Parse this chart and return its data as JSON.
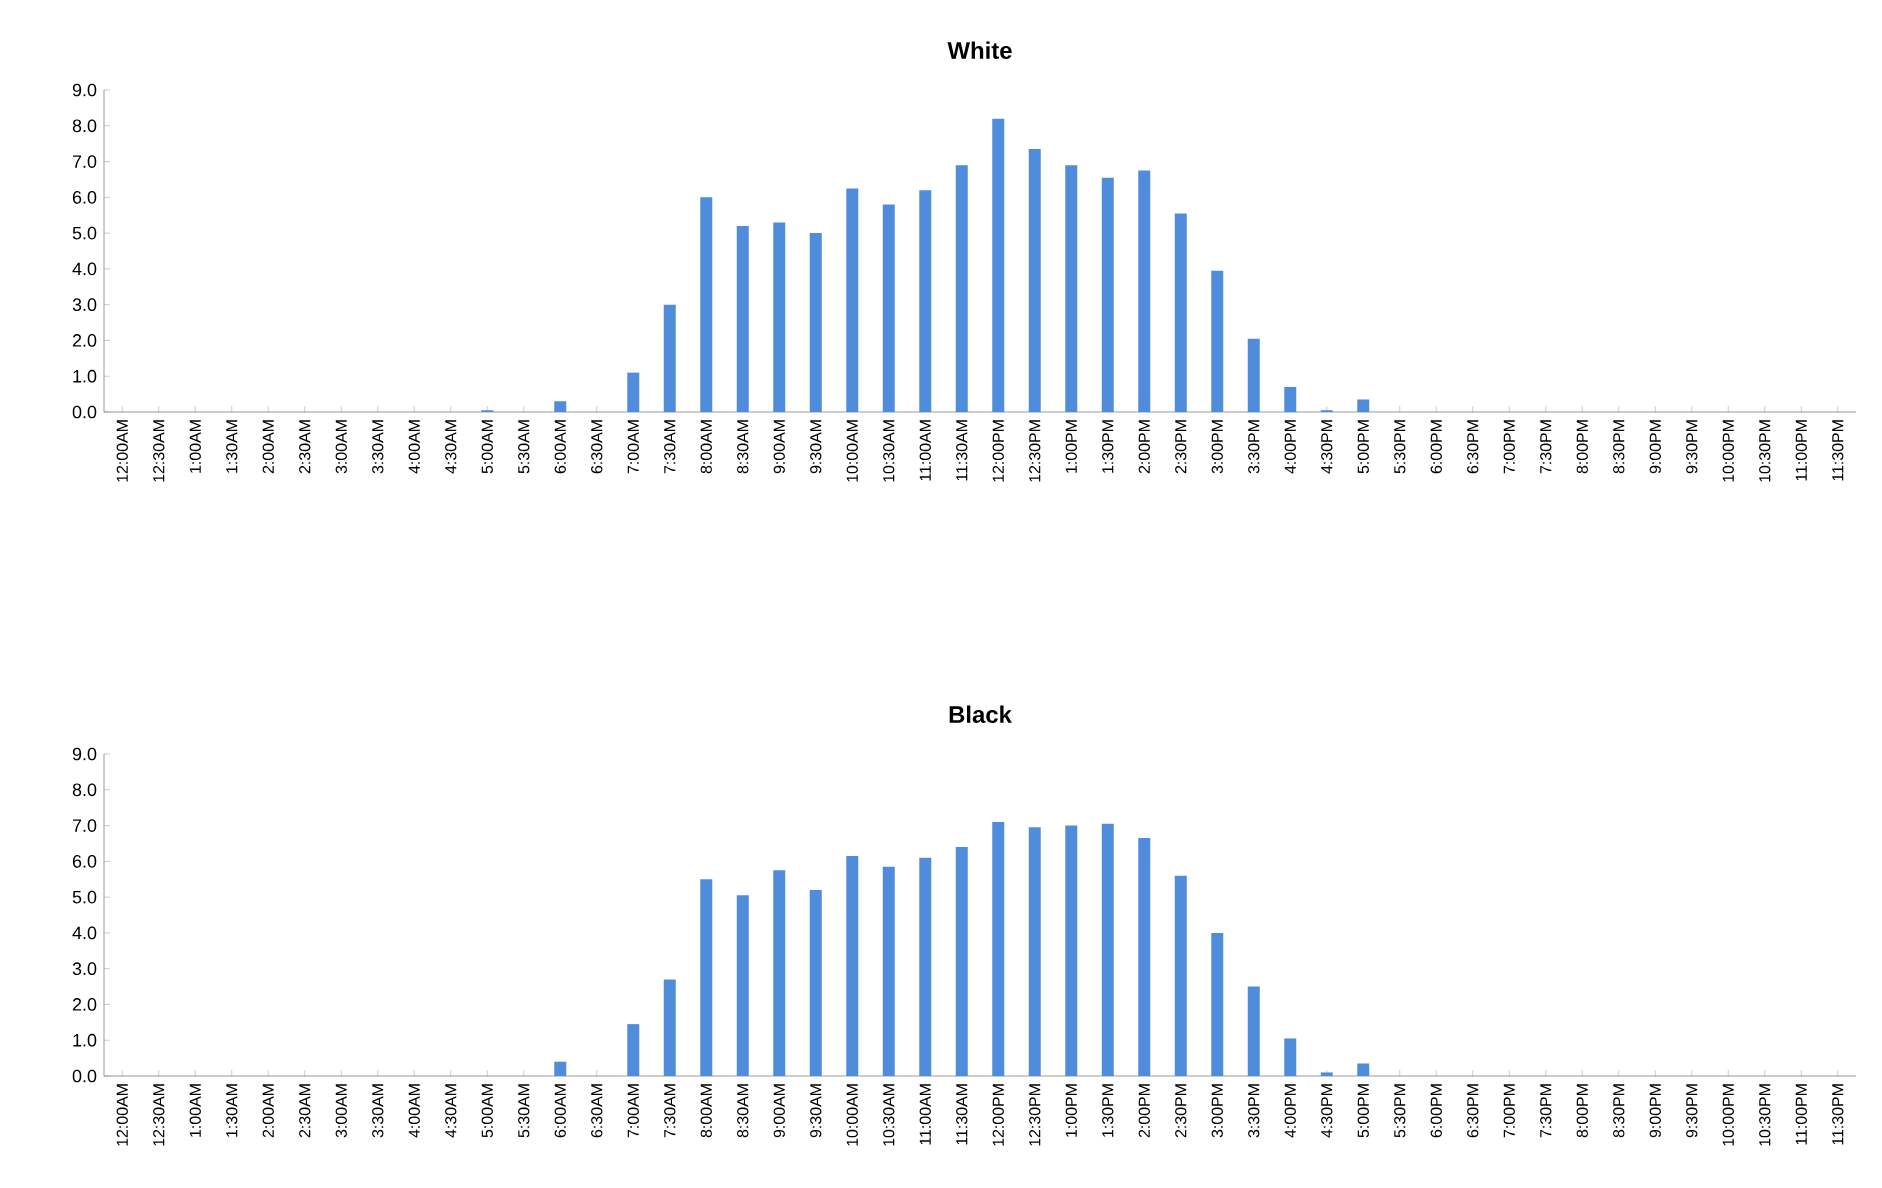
{
  "chart_data": [
    {
      "type": "bar",
      "title": "White",
      "color": "#4f8ddc",
      "categories": [
        "12:00AM",
        "12:30AM",
        "1:00AM",
        "1:30AM",
        "2:00AM",
        "2:30AM",
        "3:00AM",
        "3:30AM",
        "4:00AM",
        "4:30AM",
        "5:00AM",
        "5:30AM",
        "6:00AM",
        "6:30AM",
        "7:00AM",
        "7:30AM",
        "8:00AM",
        "8:30AM",
        "9:00AM",
        "9:30AM",
        "10:00AM",
        "10:30AM",
        "11:00AM",
        "11:30AM",
        "12:00PM",
        "12:30PM",
        "1:00PM",
        "1:30PM",
        "2:00PM",
        "2:30PM",
        "3:00PM",
        "3:30PM",
        "4:00PM",
        "4:30PM",
        "5:00PM",
        "5:30PM",
        "6:00PM",
        "6:30PM",
        "7:00PM",
        "7:30PM",
        "8:00PM",
        "8:30PM",
        "9:00PM",
        "9:30PM",
        "10:00PM",
        "10:30PM",
        "11:00PM",
        "11:30PM"
      ],
      "values": [
        0,
        0,
        0,
        0,
        0,
        0,
        0,
        0,
        0,
        0,
        0.05,
        0,
        0.3,
        0,
        1.1,
        3.0,
        6.0,
        5.2,
        5.3,
        5.0,
        6.25,
        5.8,
        6.2,
        6.9,
        8.2,
        7.35,
        6.9,
        6.55,
        6.75,
        5.55,
        3.95,
        2.05,
        0.7,
        0.05,
        0.35,
        0,
        0,
        0,
        0,
        0,
        0,
        0,
        0,
        0,
        0,
        0,
        0,
        0
      ],
      "ylim": [
        0,
        9
      ],
      "yticks": [
        {
          "value": 0,
          "label": "0.0"
        },
        {
          "value": 1,
          "label": "1.0"
        },
        {
          "value": 2,
          "label": "2.0"
        },
        {
          "value": 3,
          "label": "3.0"
        },
        {
          "value": 4,
          "label": "4.0"
        },
        {
          "value": 5,
          "label": "5.0"
        },
        {
          "value": 6,
          "label": "6.0"
        },
        {
          "value": 7,
          "label": "7.0"
        },
        {
          "value": 8,
          "label": "8.0"
        },
        {
          "value": 9,
          "label": "9.0"
        }
      ]
    },
    {
      "type": "bar",
      "title": "Black",
      "color": "#4f8ddc",
      "categories": [
        "12:00AM",
        "12:30AM",
        "1:00AM",
        "1:30AM",
        "2:00AM",
        "2:30AM",
        "3:00AM",
        "3:30AM",
        "4:00AM",
        "4:30AM",
        "5:00AM",
        "5:30AM",
        "6:00AM",
        "6:30AM",
        "7:00AM",
        "7:30AM",
        "8:00AM",
        "8:30AM",
        "9:00AM",
        "9:30AM",
        "10:00AM",
        "10:30AM",
        "11:00AM",
        "11:30AM",
        "12:00PM",
        "12:30PM",
        "1:00PM",
        "1:30PM",
        "2:00PM",
        "2:30PM",
        "3:00PM",
        "3:30PM",
        "4:00PM",
        "4:30PM",
        "5:00PM",
        "5:30PM",
        "6:00PM",
        "6:30PM",
        "7:00PM",
        "7:30PM",
        "8:00PM",
        "8:30PM",
        "9:00PM",
        "9:30PM",
        "10:00PM",
        "10:30PM",
        "11:00PM",
        "11:30PM"
      ],
      "values": [
        0,
        0,
        0,
        0,
        0,
        0,
        0,
        0,
        0,
        0,
        0,
        0,
        0.4,
        0,
        1.45,
        2.7,
        5.5,
        5.05,
        5.75,
        5.2,
        6.15,
        5.85,
        6.1,
        6.4,
        7.1,
        6.95,
        7.0,
        7.05,
        6.65,
        5.6,
        4.0,
        2.5,
        1.05,
        0.1,
        0.35,
        0,
        0,
        0,
        0,
        0,
        0,
        0,
        0,
        0,
        0,
        0,
        0,
        0
      ],
      "ylim": [
        0,
        9
      ],
      "yticks": [
        {
          "value": 0,
          "label": "0.0"
        },
        {
          "value": 1,
          "label": "1.0"
        },
        {
          "value": 2,
          "label": "2.0"
        },
        {
          "value": 3,
          "label": "3.0"
        },
        {
          "value": 4,
          "label": "4.0"
        },
        {
          "value": 5,
          "label": "5.0"
        },
        {
          "value": 6,
          "label": "6.0"
        },
        {
          "value": 7,
          "label": "7.0"
        },
        {
          "value": 8,
          "label": "8.0"
        },
        {
          "value": 9,
          "label": "9.0"
        }
      ]
    }
  ]
}
